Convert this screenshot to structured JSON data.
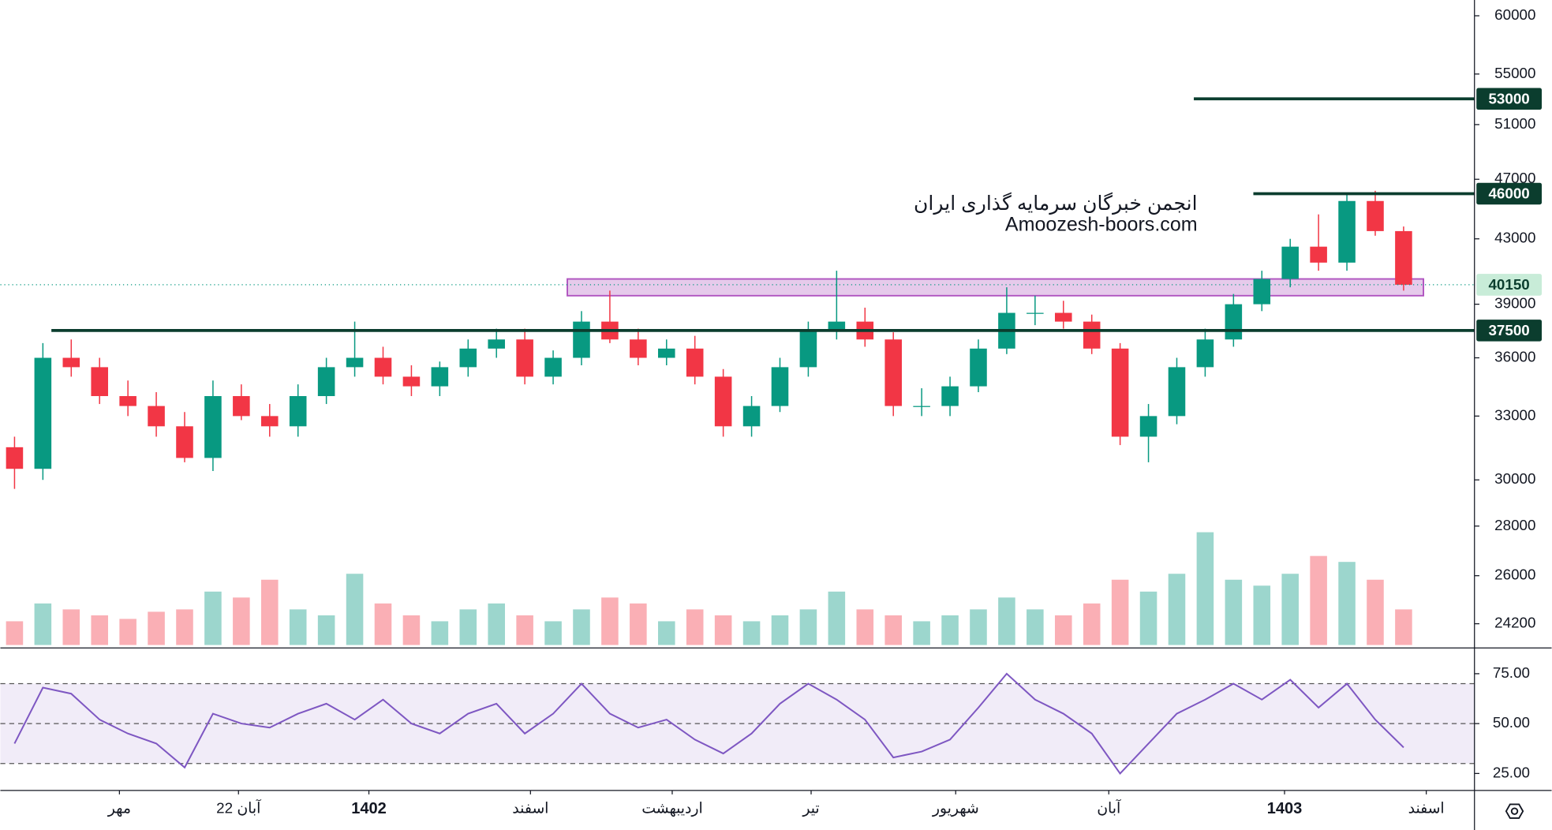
{
  "chart_data": {
    "type": "candlestick",
    "watermark": [
      "انجمن خبرگان سرمایه گذاری ایران",
      "Amoozesh-boors.com"
    ],
    "log_scale": true,
    "ylim": [
      23340,
      61430
    ],
    "yticks": [
      60000,
      55000,
      51000,
      47000,
      43000,
      39000,
      36000,
      33000,
      30000,
      28000,
      26000,
      24200
    ],
    "xlim": [
      -0.5,
      51.5
    ],
    "xticks": [
      {
        "value": 3.7,
        "label": "مهر"
      },
      {
        "value": 7.9,
        "label": "22 آبان"
      },
      {
        "value": 12.5,
        "label": "1402",
        "bold": true
      },
      {
        "value": 18.2,
        "label": "اسفند"
      },
      {
        "value": 23.2,
        "label": "اردیبهشت"
      },
      {
        "value": 28.1,
        "label": "تیر"
      },
      {
        "value": 33.2,
        "label": "شهریور"
      },
      {
        "value": 38.6,
        "label": "آبان"
      },
      {
        "value": 44.8,
        "label": "1403",
        "bold": true
      },
      {
        "value": 49.8,
        "label": "اسفند"
      }
    ],
    "up_color": "#089981",
    "down_color": "#f23645",
    "open": [
      31500,
      30500,
      36000,
      35500,
      34000,
      33500,
      32500,
      31000,
      34000,
      33000,
      32500,
      34000,
      35500,
      36000,
      35000,
      34500,
      35500,
      36500,
      37000,
      35000,
      36000,
      38000,
      37000,
      36000,
      36500,
      35000,
      32500,
      33500,
      35500,
      37500,
      38000,
      37000,
      33500,
      33500,
      34500,
      36500,
      38500,
      38500,
      38000,
      36500,
      32000,
      33000,
      35500,
      37000,
      39000,
      40500,
      42500,
      41500,
      45500,
      43500
    ],
    "high": [
      32000,
      36800,
      37000,
      36000,
      34800,
      34200,
      33200,
      34800,
      34600,
      33600,
      34600,
      36000,
      38000,
      36600,
      35600,
      35800,
      37000,
      37600,
      37600,
      36400,
      38600,
      39800,
      37600,
      37000,
      37200,
      35400,
      34000,
      36000,
      38000,
      41000,
      38800,
      37400,
      34400,
      35000,
      37000,
      40000,
      39500,
      39200,
      38400,
      36800,
      33600,
      36000,
      37600,
      39600,
      41000,
      43000,
      44600,
      46000,
      46200,
      43800
    ],
    "low": [
      29600,
      30000,
      35000,
      33600,
      33000,
      32000,
      30800,
      30400,
      32800,
      32000,
      32000,
      33600,
      35000,
      34600,
      34000,
      34000,
      35000,
      36000,
      34600,
      34600,
      35600,
      36800,
      35600,
      35600,
      34600,
      32000,
      32000,
      33200,
      35000,
      37000,
      36600,
      33000,
      33000,
      33000,
      34200,
      36200,
      37800,
      37600,
      36200,
      31600,
      30800,
      32600,
      35000,
      36600,
      38600,
      40000,
      41000,
      41000,
      43200,
      39800
    ],
    "close": [
      30500,
      36000,
      35500,
      34000,
      33500,
      32500,
      31000,
      34000,
      33000,
      32500,
      34000,
      35500,
      36000,
      35000,
      34500,
      35500,
      36500,
      37000,
      35000,
      36000,
      38000,
      37000,
      36000,
      36500,
      35000,
      32500,
      33500,
      35500,
      37500,
      38000,
      37000,
      33500,
      33500,
      34500,
      36500,
      38500,
      38500,
      38000,
      36500,
      32000,
      33000,
      35500,
      37000,
      39000,
      40500,
      42500,
      41500,
      45500,
      43500,
      40150
    ],
    "volume": [
      20,
      35,
      30,
      25,
      22,
      28,
      30,
      45,
      40,
      55,
      30,
      25,
      60,
      35,
      25,
      20,
      30,
      35,
      25,
      20,
      30,
      40,
      35,
      20,
      30,
      25,
      20,
      25,
      30,
      45,
      30,
      25,
      20,
      25,
      30,
      40,
      30,
      25,
      35,
      55,
      45,
      60,
      95,
      55,
      50,
      60,
      75,
      70,
      55,
      30
    ],
    "levels": [
      {
        "value": 53000,
        "from": 41.6
      },
      {
        "value": 46000,
        "from": 43.7
      },
      {
        "value": 37500,
        "from": 1.3
      }
    ],
    "last_price": 40150,
    "zone": {
      "low": 39500,
      "high": 40500,
      "from": 19.5,
      "to": 49.7
    },
    "rsi": {
      "ylim": [
        17,
        87.4
      ],
      "yticks": [
        {
          "value": 75,
          "label": "75.00"
        },
        {
          "value": 50,
          "label": "50.00"
        },
        {
          "value": 25,
          "label": "25.00"
        }
      ],
      "band": [
        30,
        70
      ],
      "color": "#7e57c2",
      "values": [
        40,
        68,
        65,
        52,
        45,
        40,
        28,
        55,
        50,
        48,
        55,
        60,
        52,
        62,
        50,
        45,
        55,
        60,
        45,
        55,
        70,
        55,
        48,
        52,
        42,
        35,
        45,
        60,
        70,
        62,
        52,
        33,
        36,
        42,
        58,
        75,
        62,
        55,
        45,
        25,
        40,
        55,
        62,
        70,
        62,
        72,
        58,
        70,
        52,
        38
      ]
    }
  }
}
